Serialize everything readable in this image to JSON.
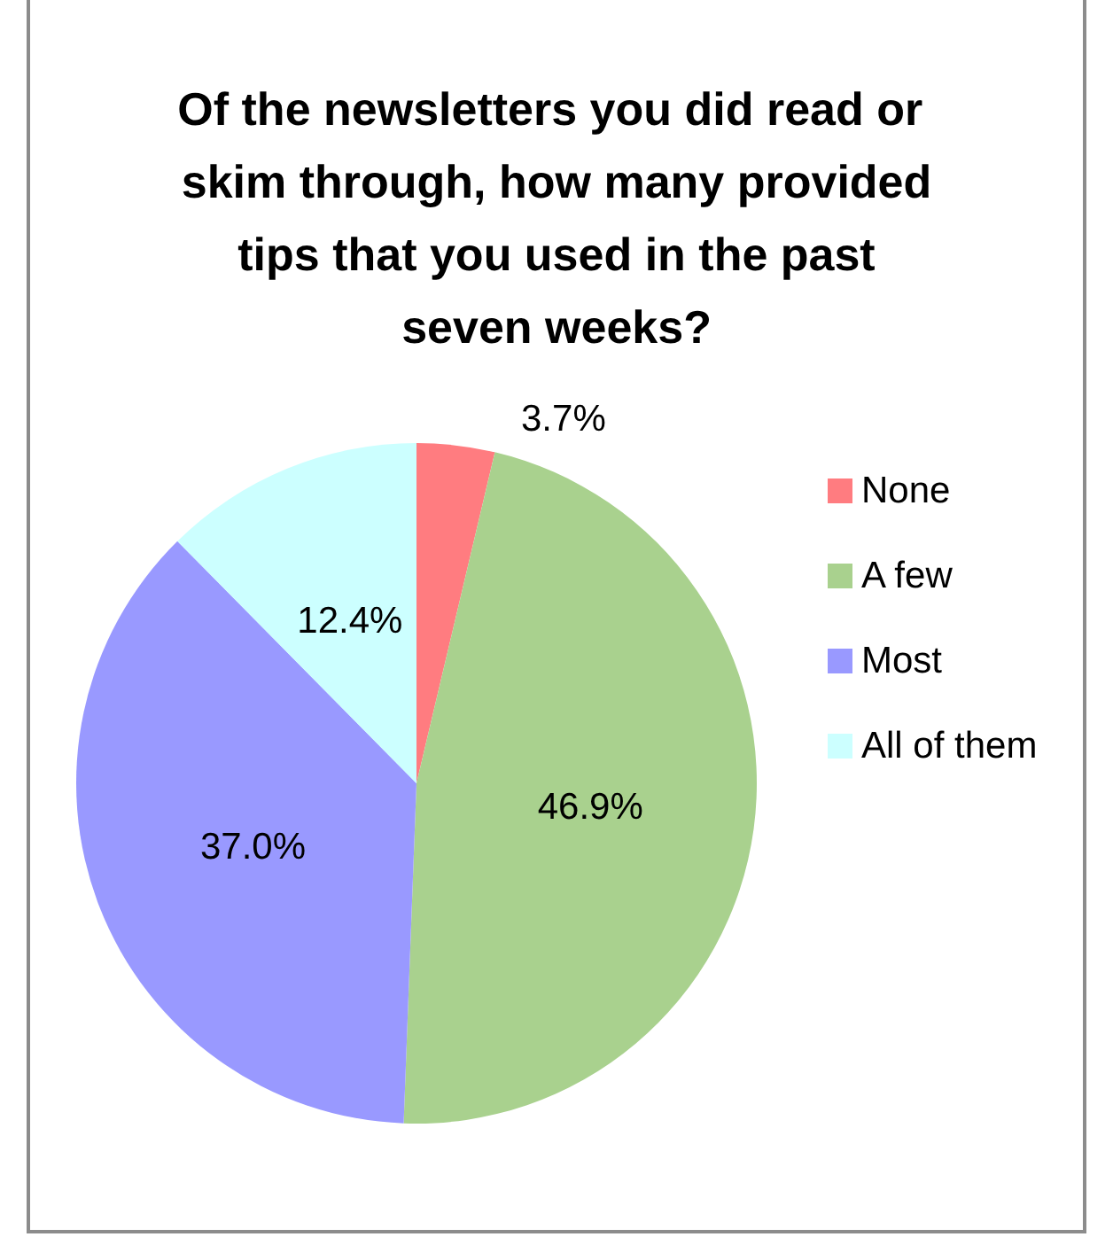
{
  "chart_data": {
    "type": "pie",
    "title": "Of the newsletters you did read or skim through, how many provided tips that you used in the past seven weeks?",
    "categories": [
      "None",
      "A few",
      "Most",
      "All of them"
    ],
    "values": [
      3.7,
      46.9,
      37.0,
      12.4
    ],
    "value_labels": [
      "3.7%",
      "46.9%",
      "37.0%",
      "12.4%"
    ],
    "colors": [
      "#ff7c80",
      "#a9d18e",
      "#9999ff",
      "#ccffff"
    ],
    "legend": "right"
  }
}
